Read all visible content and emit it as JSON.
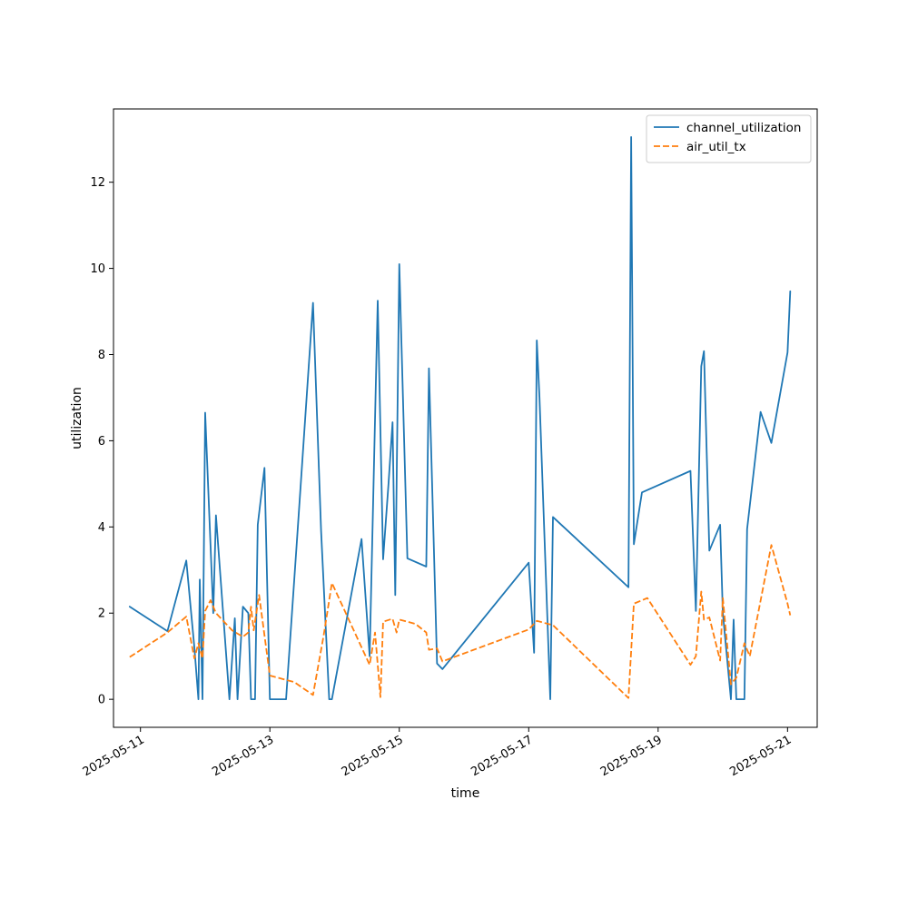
{
  "chart_data": {
    "type": "line",
    "xlabel": "time",
    "ylabel": "utilization",
    "x_tick_labels": [
      "2025-05-11",
      "2025-05-13",
      "2025-05-15",
      "2025-05-17",
      "2025-05-19",
      "2025-05-21"
    ],
    "y_tick_labels": [
      "0",
      "2",
      "4",
      "6",
      "8",
      "10",
      "12"
    ],
    "xlim": [
      "2025-05-10T14:00",
      "2025-05-21T11:00"
    ],
    "ylim": [
      -0.65,
      13.7
    ],
    "grid": false,
    "legend_position": "top-right",
    "series": [
      {
        "name": "channel_utilization",
        "color": "#1f77b4",
        "style": "solid",
        "points": [
          [
            "2025-05-10T20:00",
            2.15
          ],
          [
            "2025-05-11T10:00",
            1.58
          ],
          [
            "2025-05-11T17:00",
            3.22
          ],
          [
            "2025-05-11T20:00",
            1.2
          ],
          [
            "2025-05-11T21:30",
            0.0
          ],
          [
            "2025-05-11T22:00",
            2.78
          ],
          [
            "2025-05-11T23:00",
            0.0
          ],
          [
            "2025-05-12T00:00",
            6.65
          ],
          [
            "2025-05-12T03:00",
            2.0
          ],
          [
            "2025-05-12T04:00",
            4.27
          ],
          [
            "2025-05-12T09:00",
            0.0
          ],
          [
            "2025-05-12T11:00",
            1.88
          ],
          [
            "2025-05-12T12:00",
            0.0
          ],
          [
            "2025-05-12T14:00",
            2.15
          ],
          [
            "2025-05-12T16:00",
            2.0
          ],
          [
            "2025-05-12T17:00",
            0.0
          ],
          [
            "2025-05-12T18:30",
            0.0
          ],
          [
            "2025-05-12T19:30",
            4.05
          ],
          [
            "2025-05-12T22:00",
            5.37
          ],
          [
            "2025-05-13T00:00",
            0.0
          ],
          [
            "2025-05-13T06:00",
            0.0
          ],
          [
            "2025-05-13T10:00",
            3.65
          ],
          [
            "2025-05-13T16:00",
            9.2
          ],
          [
            "2025-05-13T19:00",
            3.9
          ],
          [
            "2025-05-13T22:00",
            0.0
          ],
          [
            "2025-05-13T23:00",
            0.0
          ],
          [
            "2025-05-14T10:00",
            3.72
          ],
          [
            "2025-05-14T13:00",
            1.0
          ],
          [
            "2025-05-14T16:00",
            9.25
          ],
          [
            "2025-05-14T18:00",
            3.25
          ],
          [
            "2025-05-14T20:00",
            5.0
          ],
          [
            "2025-05-14T21:30",
            6.43
          ],
          [
            "2025-05-14T22:30",
            2.42
          ],
          [
            "2025-05-15T00:00",
            10.1
          ],
          [
            "2025-05-15T03:00",
            3.27
          ],
          [
            "2025-05-15T10:00",
            3.08
          ],
          [
            "2025-05-15T11:00",
            7.68
          ],
          [
            "2025-05-15T14:00",
            0.83
          ],
          [
            "2025-05-15T16:00",
            0.7
          ],
          [
            "2025-05-17T00:00",
            3.17
          ],
          [
            "2025-05-17T02:00",
            1.08
          ],
          [
            "2025-05-17T03:00",
            8.33
          ],
          [
            "2025-05-17T04:00",
            7.0
          ],
          [
            "2025-05-17T08:00",
            0.0
          ],
          [
            "2025-05-17T09:00",
            4.23
          ],
          [
            "2025-05-18T13:00",
            2.6
          ],
          [
            "2025-05-18T14:00",
            13.05
          ],
          [
            "2025-05-18T15:00",
            3.6
          ],
          [
            "2025-05-18T18:00",
            4.8
          ],
          [
            "2025-05-19T12:00",
            5.3
          ],
          [
            "2025-05-19T14:00",
            2.05
          ],
          [
            "2025-05-19T16:00",
            7.73
          ],
          [
            "2025-05-19T17:00",
            8.08
          ],
          [
            "2025-05-19T19:00",
            3.45
          ],
          [
            "2025-05-19T23:00",
            4.05
          ],
          [
            "2025-05-20T00:00",
            2.0
          ],
          [
            "2025-05-20T03:00",
            0.0
          ],
          [
            "2025-05-20T04:00",
            1.85
          ],
          [
            "2025-05-20T05:00",
            0.0
          ],
          [
            "2025-05-20T08:00",
            0.0
          ],
          [
            "2025-05-20T09:00",
            3.95
          ],
          [
            "2025-05-20T14:00",
            6.67
          ],
          [
            "2025-05-20T18:00",
            5.95
          ],
          [
            "2025-05-21T00:00",
            8.05
          ],
          [
            "2025-05-21T01:00",
            9.47
          ]
        ]
      },
      {
        "name": "air_util_tx",
        "color": "#ff7f0e",
        "style": "dashed",
        "points": [
          [
            "2025-05-10T20:00",
            0.98
          ],
          [
            "2025-05-11T10:00",
            1.55
          ],
          [
            "2025-05-11T17:00",
            1.92
          ],
          [
            "2025-05-11T20:00",
            0.95
          ],
          [
            "2025-05-11T21:30",
            1.3
          ],
          [
            "2025-05-11T23:00",
            0.95
          ],
          [
            "2025-05-12T00:00",
            2.05
          ],
          [
            "2025-05-12T02:00",
            2.3
          ],
          [
            "2025-05-12T04:00",
            2.0
          ],
          [
            "2025-05-12T10:00",
            1.6
          ],
          [
            "2025-05-12T14:00",
            1.45
          ],
          [
            "2025-05-12T16:00",
            1.55
          ],
          [
            "2025-05-12T17:00",
            2.15
          ],
          [
            "2025-05-12T18:00",
            1.6
          ],
          [
            "2025-05-12T20:00",
            2.42
          ],
          [
            "2025-05-13T00:00",
            0.55
          ],
          [
            "2025-05-13T09:00",
            0.4
          ],
          [
            "2025-05-13T16:00",
            0.1
          ],
          [
            "2025-05-13T20:00",
            1.5
          ],
          [
            "2025-05-13T23:00",
            2.7
          ],
          [
            "2025-05-14T13:00",
            0.8
          ],
          [
            "2025-05-14T15:00",
            1.55
          ],
          [
            "2025-05-14T17:00",
            0.05
          ],
          [
            "2025-05-14T18:00",
            1.8
          ],
          [
            "2025-05-14T21:30",
            1.87
          ],
          [
            "2025-05-14T23:00",
            1.55
          ],
          [
            "2025-05-15T00:00",
            1.85
          ],
          [
            "2025-05-15T06:00",
            1.75
          ],
          [
            "2025-05-15T10:00",
            1.55
          ],
          [
            "2025-05-15T11:00",
            1.15
          ],
          [
            "2025-05-15T14:00",
            1.18
          ],
          [
            "2025-05-15T16:00",
            0.88
          ],
          [
            "2025-05-17T00:00",
            1.62
          ],
          [
            "2025-05-17T03:00",
            1.82
          ],
          [
            "2025-05-17T09:00",
            1.72
          ],
          [
            "2025-05-18T13:00",
            0.03
          ],
          [
            "2025-05-18T15:00",
            2.22
          ],
          [
            "2025-05-18T20:00",
            2.35
          ],
          [
            "2025-05-19T12:00",
            0.8
          ],
          [
            "2025-05-19T14:00",
            1.0
          ],
          [
            "2025-05-19T16:00",
            2.5
          ],
          [
            "2025-05-19T17:00",
            1.85
          ],
          [
            "2025-05-19T19:00",
            1.9
          ],
          [
            "2025-05-19T23:00",
            0.9
          ],
          [
            "2025-05-20T00:00",
            2.35
          ],
          [
            "2025-05-20T03:00",
            0.35
          ],
          [
            "2025-05-20T05:00",
            0.5
          ],
          [
            "2025-05-20T08:00",
            1.3
          ],
          [
            "2025-05-20T10:00",
            1.0
          ],
          [
            "2025-05-20T18:00",
            3.58
          ],
          [
            "2025-05-21T00:00",
            2.22
          ],
          [
            "2025-05-21T01:00",
            1.95
          ]
        ]
      }
    ]
  }
}
